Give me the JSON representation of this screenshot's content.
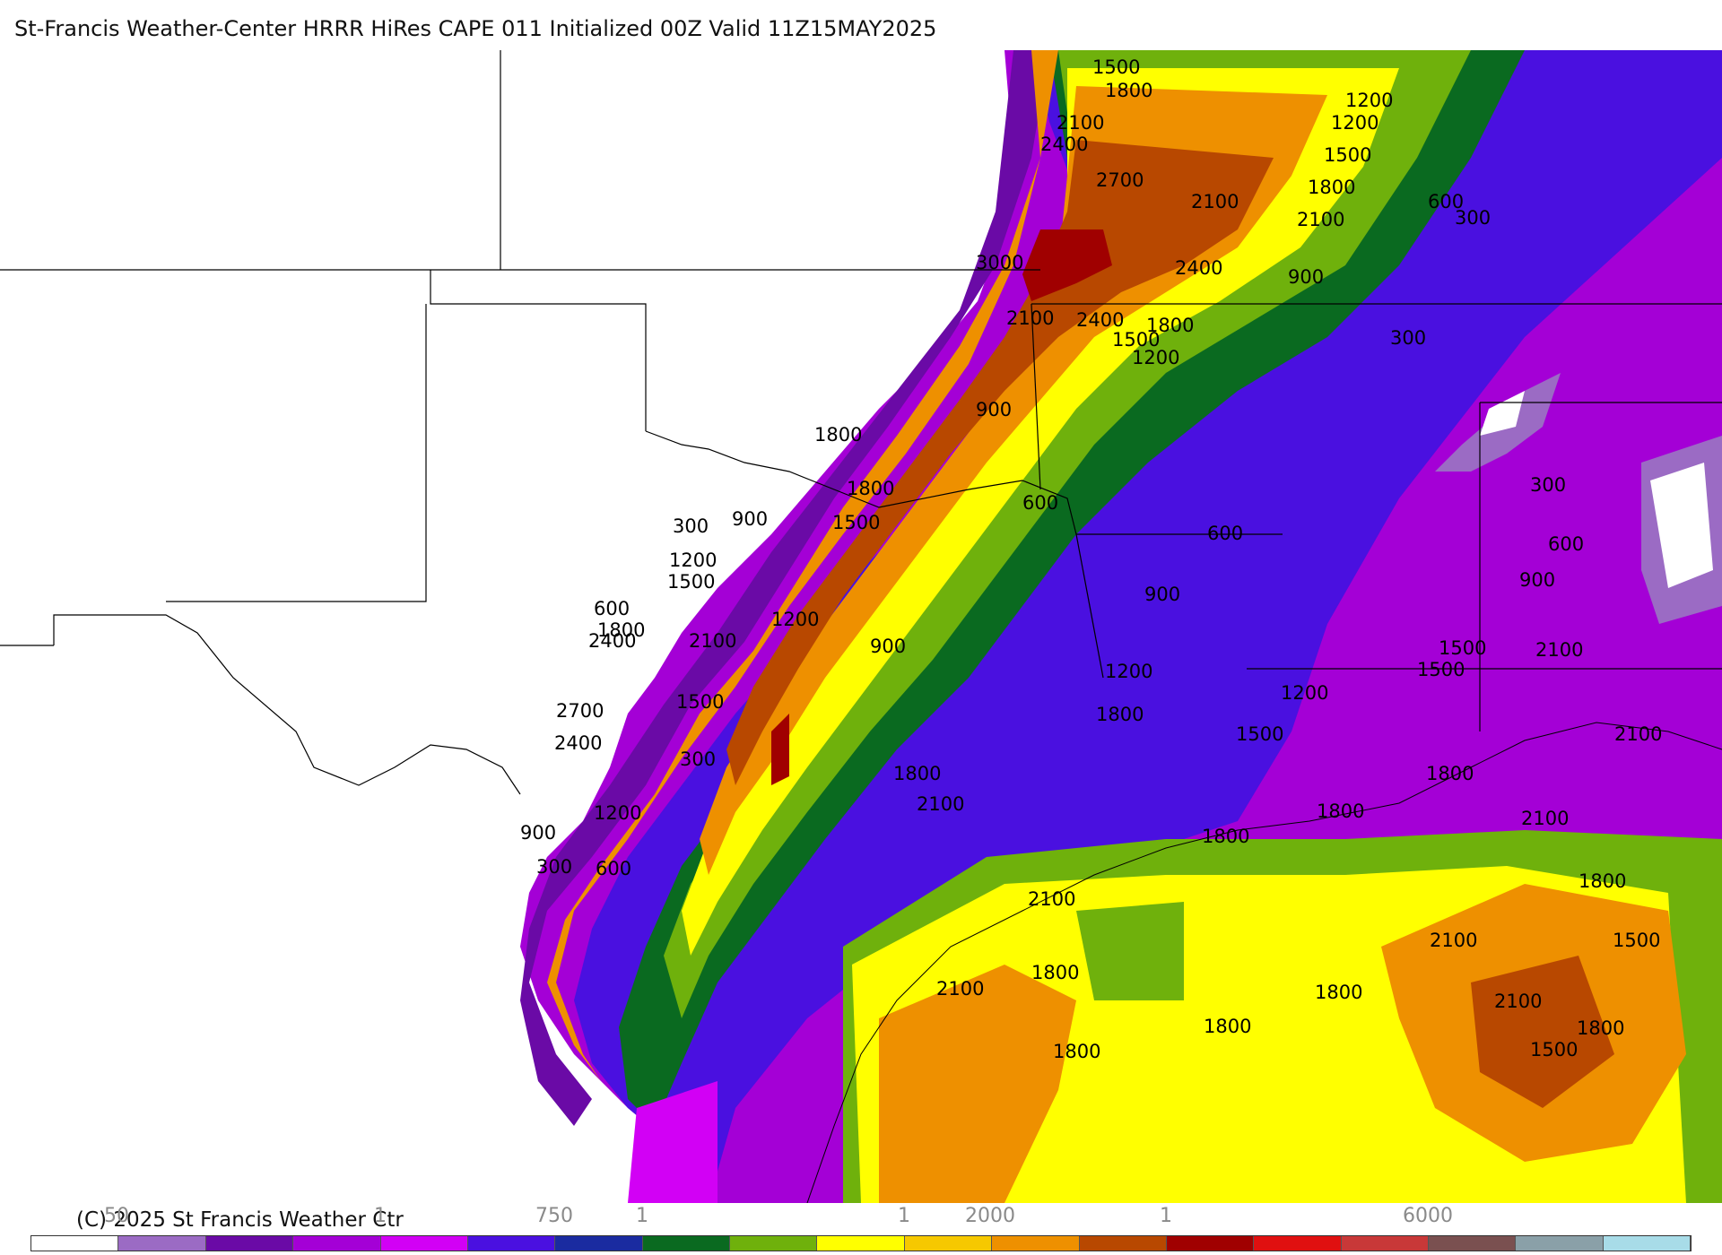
{
  "title": "St-Francis Weather-Center HRRR HiRes CAPE  011 Initialized  00Z Valid 11Z15MAY2025",
  "copyright": "(C) 2025 St Francis Weather Ctr",
  "legend": {
    "colors": [
      "#ffffff",
      "#9b6bc4",
      "#6a0aa6",
      "#a400d6",
      "#d200f5",
      "#4a10e0",
      "#1a2ba0",
      "#0a6a20",
      "#6fb10c",
      "#ffff00",
      "#f6c800",
      "#ee9000",
      "#b84800",
      "#a00000",
      "#e01010",
      "#c83838",
      "#7a5050",
      "#8aa0a8",
      "#a8dce8"
    ],
    "tick_labels": [
      "50",
      "1",
      "750",
      "1",
      "1",
      "2000",
      "1",
      "6000"
    ]
  },
  "contour_labels": [
    "1500",
    "1800",
    "1200",
    "2100",
    "1200",
    "2400",
    "1500",
    "2700",
    "1800",
    "2100",
    "2100",
    "600",
    "300",
    "3000",
    "2400",
    "900",
    "2100",
    "2400",
    "1800",
    "1500",
    "300",
    "1200",
    "900",
    "1800",
    "1800",
    "900",
    "600",
    "300",
    "300",
    "1500",
    "600",
    "1200",
    "600",
    "1500",
    "900",
    "900",
    "600",
    "1800",
    "1200",
    "2400",
    "2100",
    "900",
    "1200",
    "1500",
    "2100",
    "1500",
    "2700",
    "1200",
    "1800",
    "2100",
    "1500",
    "2400",
    "1500",
    "300",
    "1800",
    "1800",
    "2100",
    "2100",
    "1800",
    "900",
    "1200",
    "1800",
    "2100",
    "1800",
    "300",
    "1800",
    "1500",
    "600",
    "1800",
    "2100",
    "2100",
    "1800",
    "1800",
    "2100",
    "1500",
    "1800"
  ],
  "regions": [
    "land-background",
    "cape-field",
    "state-boundaries",
    "coastline"
  ]
}
